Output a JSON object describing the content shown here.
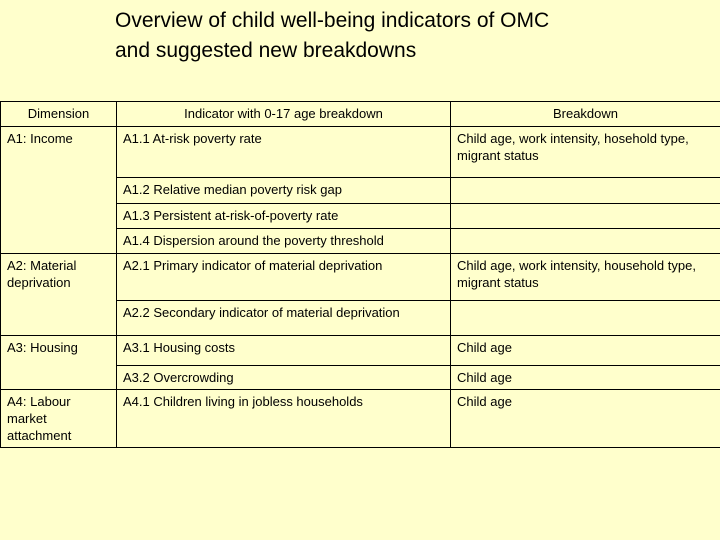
{
  "slide": {
    "title_line1": "Overview of child well-being indicators of OMC",
    "title_line2": "and suggested new breakdowns"
  },
  "table": {
    "headers": [
      "Dimension",
      "Indicator with 0-17 age breakdown",
      "Breakdown"
    ],
    "groups": [
      {
        "dimension": "A1: Income",
        "rows": [
          {
            "indicator": "A1.1 At-risk poverty rate",
            "breakdown": "Child age, work intensity, hosehold type, migrant status"
          },
          {
            "indicator": "A1.2 Relative median poverty risk gap",
            "breakdown": ""
          },
          {
            "indicator": "A1.3 Persistent at-risk-of-poverty rate",
            "breakdown": ""
          },
          {
            "indicator": "A1.4 Dispersion around the poverty threshold",
            "breakdown": ""
          }
        ]
      },
      {
        "dimension": "A2: Material deprivation",
        "rows": [
          {
            "indicator": "A2.1 Primary indicator of material deprivation",
            "breakdown": "Child age, work intensity, household type, migrant status"
          },
          {
            "indicator": "A2.2 Secondary indicator of material deprivation",
            "breakdown": ""
          }
        ]
      },
      {
        "dimension": "A3: Housing",
        "rows": [
          {
            "indicator": "A3.1 Housing costs",
            "breakdown": "Child age"
          },
          {
            "indicator": "A3.2 Overcrowding",
            "breakdown": "Child age"
          }
        ]
      },
      {
        "dimension": "A4: Labour market attachment",
        "rows": [
          {
            "indicator": "A4.1 Children living in jobless households",
            "breakdown": "Child age"
          }
        ]
      }
    ]
  }
}
